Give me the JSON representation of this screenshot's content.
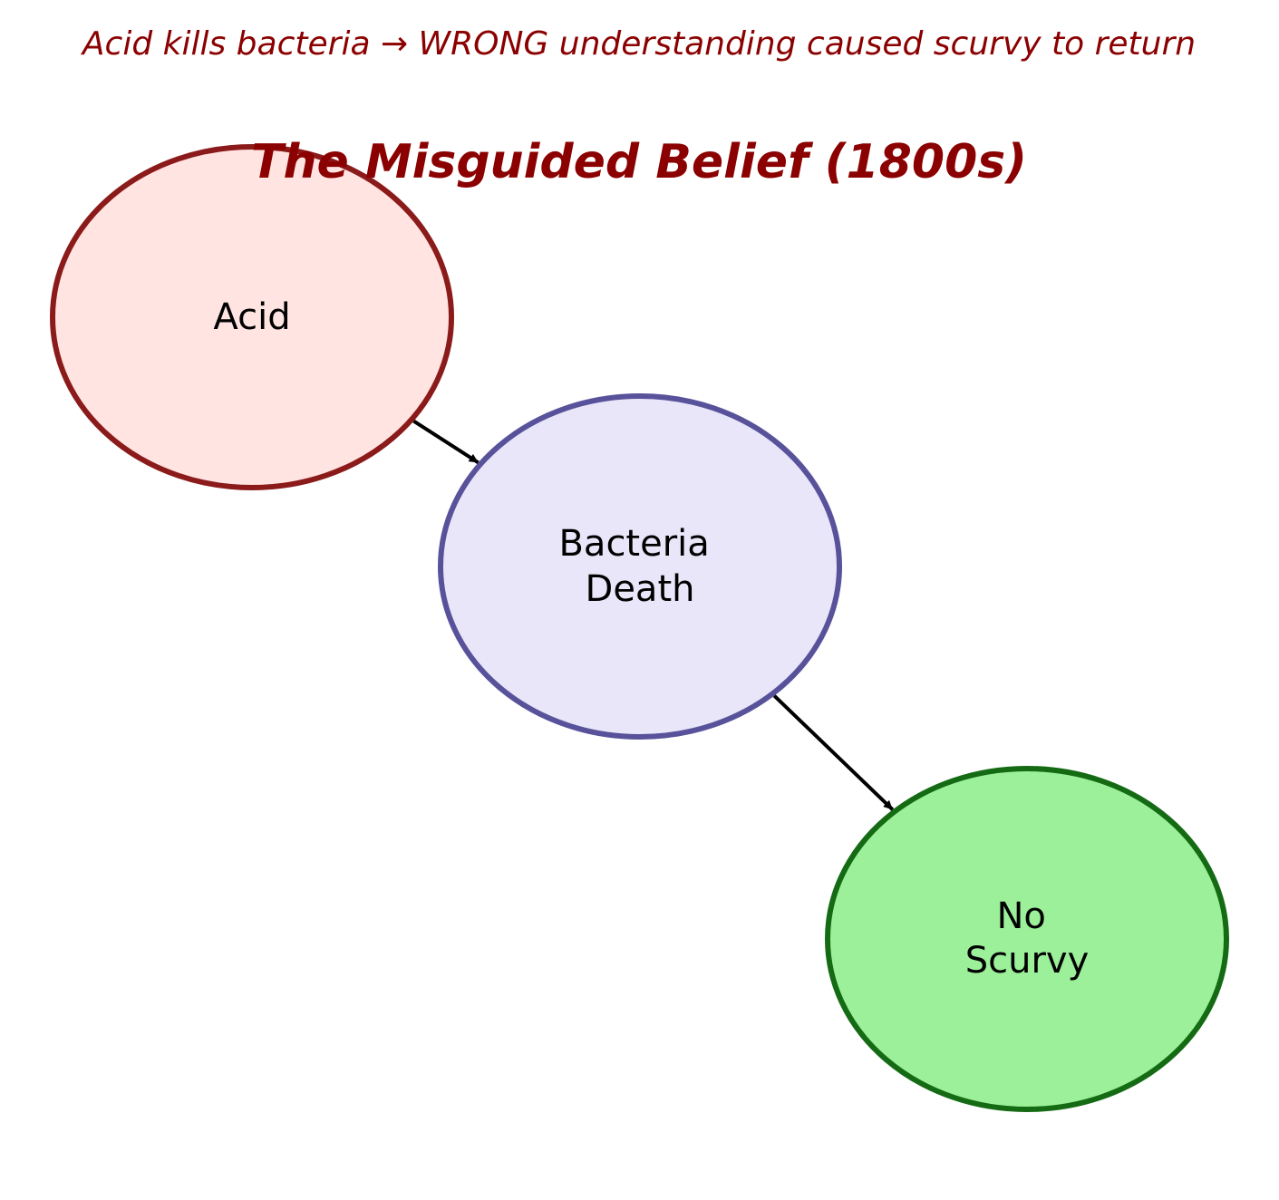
{
  "header": {
    "subtitle": "Acid kills bacteria → WRONG understanding caused scurvy to return",
    "title": "The Misguided Belief (1800s)",
    "text_color": "#8b0000"
  },
  "nodes": [
    {
      "id": "acid",
      "lines": [
        "Acid"
      ],
      "fill": "#ffe4e1",
      "stroke": "#8b1a1a"
    },
    {
      "id": "bacteria-death",
      "lines": [
        "Bacteria",
        "Death"
      ],
      "fill": "#e8e6f8",
      "stroke": "#58529a"
    },
    {
      "id": "no-scurvy",
      "lines": [
        "No",
        "Scurvy"
      ],
      "fill": "#9cf09a",
      "stroke": "#146b14"
    }
  ],
  "edges": [
    {
      "from": "acid",
      "to": "bacteria-death"
    },
    {
      "from": "bacteria-death",
      "to": "no-scurvy"
    }
  ]
}
